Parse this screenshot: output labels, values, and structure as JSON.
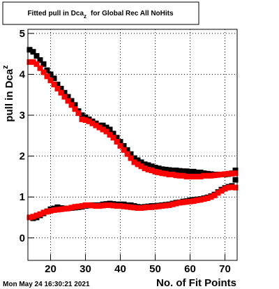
{
  "chart_data": {
    "type": "scatter",
    "title": {
      "main": "Fitted pull in Dca",
      "sub": "z",
      "rest": "for Global Rec All NoHits"
    },
    "x_label": "No. of Fit Points",
    "y_label": {
      "main": "pull in Dca",
      "sub": "z"
    },
    "timestamp": "Mon May 24 16:30:21 2021",
    "xlim": [
      13.5,
      73.5
    ],
    "ylim": [
      -0.55,
      5.1
    ],
    "xticks": [
      20,
      30,
      40,
      50,
      60,
      70
    ],
    "yticks": [
      0,
      1,
      2,
      3,
      4,
      5
    ],
    "grid": true,
    "x": [
      14,
      15,
      16,
      17,
      18,
      19,
      20,
      21,
      22,
      23,
      24,
      25,
      26,
      27,
      28,
      29,
      30,
      31,
      32,
      33,
      34,
      35,
      36,
      37,
      38,
      39,
      40,
      41,
      42,
      43,
      44,
      45,
      46,
      47,
      48,
      49,
      50,
      51,
      52,
      53,
      54,
      55,
      56,
      57,
      58,
      59,
      60,
      61,
      62,
      63,
      64,
      65,
      66,
      67,
      68,
      69,
      70,
      71,
      72,
      73
    ],
    "series": [
      {
        "color": "#000000",
        "values": [
          4.6,
          4.55,
          4.45,
          4.35,
          4.25,
          4.1,
          4.0,
          3.9,
          3.75,
          3.65,
          3.55,
          3.45,
          3.35,
          3.25,
          3.1,
          3.0,
          2.95,
          2.9,
          2.85,
          2.8,
          2.75,
          2.75,
          2.7,
          2.65,
          2.55,
          2.45,
          2.35,
          2.25,
          2.15,
          2.05,
          1.95,
          1.9,
          1.85,
          1.8,
          1.78,
          1.75,
          1.72,
          1.7,
          1.68,
          1.67,
          1.66,
          1.65,
          1.65,
          1.64,
          1.63,
          1.63,
          1.62,
          1.62,
          1.6,
          1.6,
          1.58,
          1.57,
          1.56,
          1.55,
          1.55,
          1.55,
          1.55,
          1.56,
          1.58,
          1.65
        ]
      },
      {
        "color": "#ff0000",
        "values": [
          4.3,
          4.3,
          4.25,
          4.15,
          4.05,
          3.95,
          3.85,
          3.75,
          3.65,
          3.55,
          3.45,
          3.35,
          3.25,
          3.15,
          3.05,
          2.9,
          2.88,
          2.85,
          2.8,
          2.75,
          2.7,
          2.65,
          2.6,
          2.52,
          2.45,
          2.35,
          2.25,
          2.15,
          2.05,
          1.95,
          1.85,
          1.8,
          1.75,
          1.7,
          1.67,
          1.65,
          1.62,
          1.6,
          1.58,
          1.57,
          1.55,
          1.55,
          1.53,
          1.52,
          1.52,
          1.5,
          1.5,
          1.5,
          1.5,
          1.5,
          1.52,
          1.52,
          1.52,
          1.53,
          1.54,
          1.55,
          1.56,
          1.57,
          1.57,
          1.58
        ]
      },
      {
        "color": "#000000",
        "values": [
          0.5,
          0.48,
          0.5,
          0.55,
          0.6,
          0.65,
          0.7,
          0.72,
          0.75,
          0.73,
          0.72,
          0.72,
          0.73,
          0.74,
          0.75,
          0.76,
          0.78,
          0.79,
          0.8,
          0.8,
          0.8,
          0.82,
          0.83,
          0.84,
          0.83,
          0.82,
          0.82,
          0.82,
          0.8,
          0.8,
          0.78,
          0.76,
          0.75,
          0.76,
          0.77,
          0.78,
          0.78,
          0.79,
          0.8,
          0.81,
          0.82,
          0.84,
          0.86,
          0.87,
          0.89,
          0.9,
          0.92,
          0.93,
          0.94,
          0.95,
          0.97,
          0.99,
          1.02,
          1.06,
          1.12,
          1.18,
          1.22,
          1.25,
          1.27,
          1.42
        ]
      },
      {
        "color": "#ff0000",
        "values": [
          0.5,
          0.52,
          0.55,
          0.58,
          0.62,
          0.64,
          0.66,
          0.68,
          0.69,
          0.7,
          0.71,
          0.72,
          0.74,
          0.76,
          0.77,
          0.78,
          0.8,
          0.8,
          0.79,
          0.78,
          0.78,
          0.79,
          0.8,
          0.8,
          0.79,
          0.78,
          0.78,
          0.77,
          0.76,
          0.75,
          0.74,
          0.73,
          0.73,
          0.74,
          0.75,
          0.75,
          0.76,
          0.77,
          0.78,
          0.79,
          0.8,
          0.82,
          0.84,
          0.86,
          0.87,
          0.88,
          0.89,
          0.9,
          0.92,
          0.93,
          0.95,
          0.97,
          1.0,
          1.04,
          1.1,
          1.15,
          1.2,
          1.23,
          1.24,
          1.23
        ]
      }
    ]
  }
}
